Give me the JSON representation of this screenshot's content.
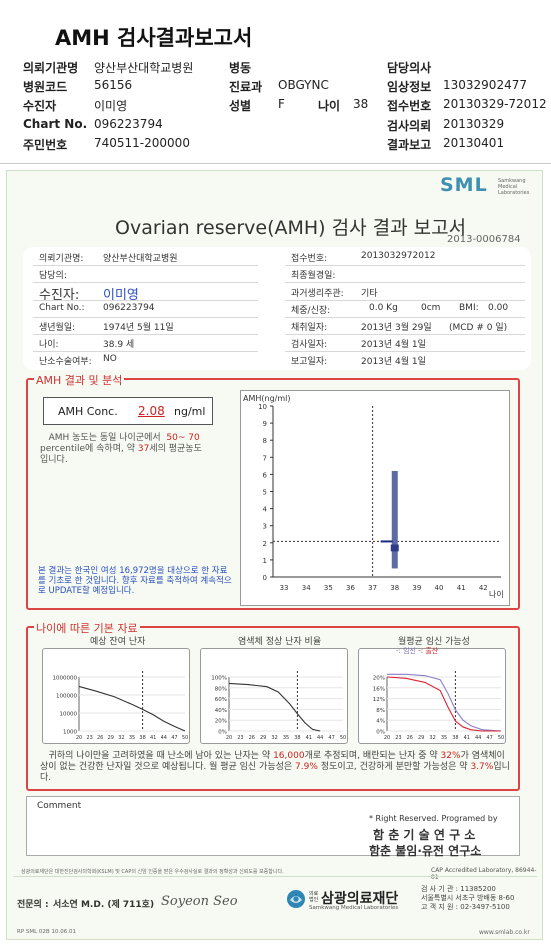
{
  "top": {
    "title": "AMH 검사결과보고서",
    "rows": [
      [
        {
          "l": "의뢰기관명",
          "v": "양산부산대학교병원"
        },
        {
          "l": "병동",
          "v": ""
        },
        {
          "l": "담당의사",
          "v": ""
        }
      ],
      [
        {
          "l": "병원코드",
          "v": "56156"
        },
        {
          "l": "진료과",
          "v": "OBGYNC"
        },
        {
          "l": "임상정보",
          "v": "13032902477"
        }
      ],
      [
        {
          "l": "수진자",
          "v": "이미영"
        },
        {
          "l": "성별",
          "v": "F"
        },
        {
          "l": "접수번호",
          "v": "20130329-72012"
        }
      ],
      [
        {
          "l": "Chart No.",
          "v": "096223794"
        },
        {
          "l": "",
          "v": ""
        },
        {
          "l": "검사의뢰",
          "v": "20130329"
        }
      ],
      [
        {
          "l": "주민번호",
          "v": "740511-200000"
        },
        {
          "l": "",
          "v": ""
        },
        {
          "l": "결과보고",
          "v": "20130401"
        }
      ]
    ],
    "age_label": "나이",
    "age_value": "38"
  },
  "report": {
    "logo": "SML",
    "logo_sub1": "Samkwang",
    "logo_sub2": "Medical",
    "logo_sub3": "Laboratories",
    "title": "Ovarian reserve(AMH) 검사 결과 보고서",
    "id": "2013-0006784",
    "info": {
      "inst_label": "의뢰기관명:",
      "inst_value": "양산부산대학교병원",
      "doctor_label": "담당의:",
      "patient_label": "수진자:",
      "patient_value": "이미영",
      "chart_label": "Chart No.:",
      "chart_value": "096223794",
      "birth_label": "생년월일:",
      "birth_value": "1974년 5월 11일",
      "age_label": "나이:",
      "age_value": "38.9 세",
      "surgery_label": "난소수술여부:",
      "surgery_value": "NO",
      "recv_label": "접수번호:",
      "recv_value": "2013032972012",
      "last_period_label": "최종월경일:",
      "history_label": "과거생리주관:",
      "history_value": "기타",
      "weight_label": "체중/신장:",
      "weight_value": "0.0 Kg",
      "height_value": "0cm",
      "bmi_label": "BMI:",
      "bmi_value": "0.00",
      "draw_label": "채취일자:",
      "draw_value": "2013년 3월 29일",
      "mcd_value": "(MCD # 0 일)",
      "test_label": "검사일자:",
      "test_value": "2013년 4월 1일",
      "report_label": "보고일자:",
      "report_value": "2013년 4월 1일"
    },
    "amh": {
      "section_title": "AMH 결과 및 분석",
      "conc_label": "AMH Conc.",
      "conc_value": "2.08",
      "conc_unit": "ng/ml",
      "interp_1": "AMH 농도는 동일 나이군에서",
      "interp_range": "50~ 70",
      "interp_2": "percentile에 속하며, 약",
      "interp_age": "37",
      "interp_3": "세의 평균농도",
      "interp_4": "입니다.",
      "note": "본 결과는 한국인 여성 16,972명을 대상으로 한 자료를 기초로 한 것입니다. 향후 자료를 축적하여 계속적으로 UPDATE할 예정입니다."
    },
    "base": {
      "section_title": "나이에 따른 기본 자료",
      "mini1_title": "예상 잔여 난자",
      "mini2_title": "염색체 정상 난자 비율",
      "mini3_title": "월평균 임신 가능성",
      "legend_preg": "-: 임신",
      "legend_birth": "-: 출산",
      "summary_1": "귀하의 나이만을 고려하였을 때 난소에 남아 있는 난자는 약",
      "summary_eggs": "16,000",
      "summary_2": "개로 추정되며, 배란되는 난자 중 약",
      "summary_pct": "32%",
      "summary_3": "가 염색체이상이 없는 건강한 난자일 것으로 예상됩니다. 월 평균 임신 가능성은",
      "summary_preg": "7.9%",
      "summary_4": "정도이고, 건강하게 분만할 가능성은 약",
      "summary_birth": "3.7%",
      "summary_5": "입니다."
    },
    "comment_label": "Comment",
    "rights": "* Right Reserved. Programed by",
    "org1": "함 춘 기 술 연 구 소",
    "org2": "함춘 불임·유전 연구소",
    "footnote": "삼광의료재단은 대한진단검사의학회(KSLM) 및 CAP의 신임 인증을 받은 우수검사실로 결과의 정확성과 신뢰도를 보증합니다.",
    "cap": "CAP Accredited Laboratory, 86944-01",
    "signer_label": "전문의 :",
    "signer": "서소연 M.D. (제 711호)",
    "signature": "Soyeon Seo",
    "foundation_small": "의료법인",
    "foundation": "삼광의료재단",
    "foundation_en": "Samkwang Medical Laboratories",
    "contact1": "검 사 기 관 : 11385200",
    "contact2": "서울특별시 서초구 방배동 8-60",
    "contact3": "고 객 지 원 : 02-3497-5100",
    "form_code": "RP SML 02B 10.06.01",
    "website": "www.smlab.co.kr"
  },
  "chart_data": [
    {
      "type": "scatter",
      "title": "",
      "ylabel": "AMH(ng/ml)",
      "xlabel": "나이",
      "x_ticks": [
        33,
        34,
        35,
        36,
        37,
        38,
        39,
        40,
        41,
        42
      ],
      "y_ticks": [
        0,
        1,
        2,
        3,
        4,
        5,
        6,
        7,
        8,
        9,
        10
      ],
      "xlim": [
        32.5,
        42.8
      ],
      "ylim": [
        0,
        10
      ],
      "range_bar": {
        "x": 38,
        "low": 0.5,
        "high": 6.2
      },
      "iqr": {
        "x": 38,
        "low": 1.5,
        "high": 1.9
      },
      "point": {
        "x": 37,
        "y": 2.08
      },
      "ref_x": 37,
      "ref_y": 2.08
    },
    {
      "type": "line",
      "title": "예상 잔여 난자",
      "x_ticks": [
        20,
        23,
        26,
        29,
        32,
        35,
        38,
        41,
        44,
        47,
        50
      ],
      "y_ticks": [
        "1000000",
        "100000",
        "10000",
        "1000"
      ],
      "yscale": "log",
      "x": [
        20,
        25,
        30,
        35,
        38,
        41,
        44,
        47,
        50
      ],
      "values": [
        300000,
        160000,
        80000,
        30000,
        16000,
        8000,
        3500,
        1800,
        1000
      ]
    },
    {
      "type": "line",
      "title": "염색체 정상 난자 비율",
      "x_ticks": [
        20,
        23,
        26,
        29,
        32,
        35,
        38,
        41,
        44,
        47,
        50
      ],
      "y_ticks": [
        "0%",
        "20%",
        "40%",
        "60%",
        "80%",
        "100%"
      ],
      "x": [
        20,
        25,
        30,
        33,
        36,
        38,
        40,
        42,
        44
      ],
      "values": [
        88,
        86,
        82,
        72,
        50,
        32,
        15,
        3,
        0
      ]
    },
    {
      "type": "line",
      "title": "월평균 임신 가능성",
      "x_ticks": [
        20,
        23,
        26,
        29,
        32,
        35,
        38,
        41,
        44,
        47,
        50
      ],
      "y_ticks": [
        "0%",
        "4%",
        "8%",
        "12%",
        "16%",
        "20%"
      ],
      "series": [
        {
          "name": "임신",
          "x": [
            20,
            25,
            30,
            34,
            36,
            38,
            40,
            42,
            45,
            50
          ],
          "values": [
            21,
            21,
            20.5,
            19,
            14,
            7.9,
            4,
            2,
            0.5,
            0
          ]
        },
        {
          "name": "출산",
          "x": [
            20,
            25,
            30,
            34,
            36,
            38,
            40,
            42,
            45,
            50
          ],
          "values": [
            20,
            19.5,
            18,
            15,
            9,
            3.7,
            1.5,
            0.5,
            0,
            0
          ]
        }
      ]
    }
  ]
}
